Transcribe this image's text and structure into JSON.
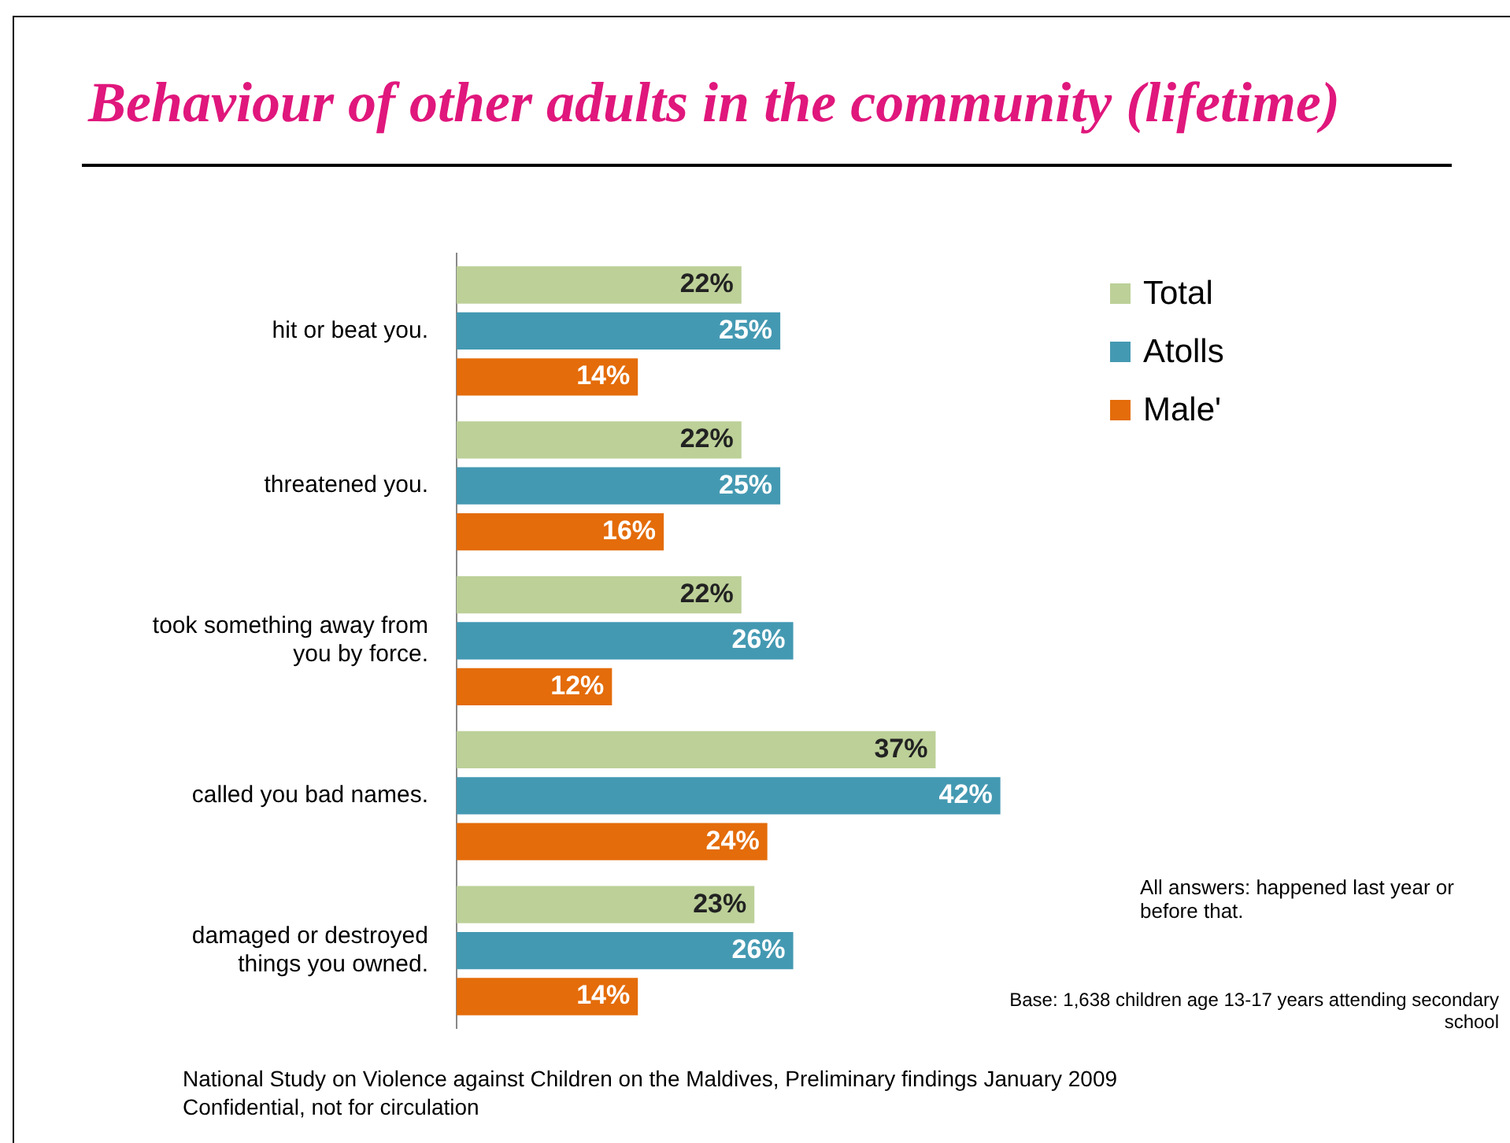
{
  "chart_data": {
    "type": "bar",
    "orientation": "horizontal",
    "title": "Behaviour of other adults in the community (lifetime)",
    "categories": [
      "hit or beat you.",
      "threatened you.",
      "took something away from you by force.",
      "called you bad names.",
      "damaged or destroyed things you owned."
    ],
    "series": [
      {
        "name": "Total",
        "color": "#bcd098",
        "values": [
          22,
          22,
          22,
          37,
          23
        ],
        "value_labels": [
          "22%",
          "22%",
          "22%",
          "37%",
          "23%"
        ]
      },
      {
        "name": "Atolls",
        "color": "#4499b2",
        "values": [
          25,
          25,
          26,
          42,
          26
        ],
        "value_labels": [
          "25%",
          "25%",
          "26%",
          "42%",
          "26%"
        ]
      },
      {
        "name": "Male'",
        "color": "#e46c0a",
        "values": [
          14,
          16,
          12,
          24,
          14
        ],
        "value_labels": [
          "14%",
          "16%",
          "12%",
          "24%",
          "14%"
        ]
      }
    ],
    "legend": "right",
    "grid": false,
    "tick_labels": "y",
    "annotations": [
      "All answers: happened last year or before that.",
      "Base: 1,638 children age 13-17 years attending secondary school",
      "National Study on Violence against Children on the Maldives, Preliminary findings January 2009",
      "Confidential, not for circulation"
    ]
  }
}
